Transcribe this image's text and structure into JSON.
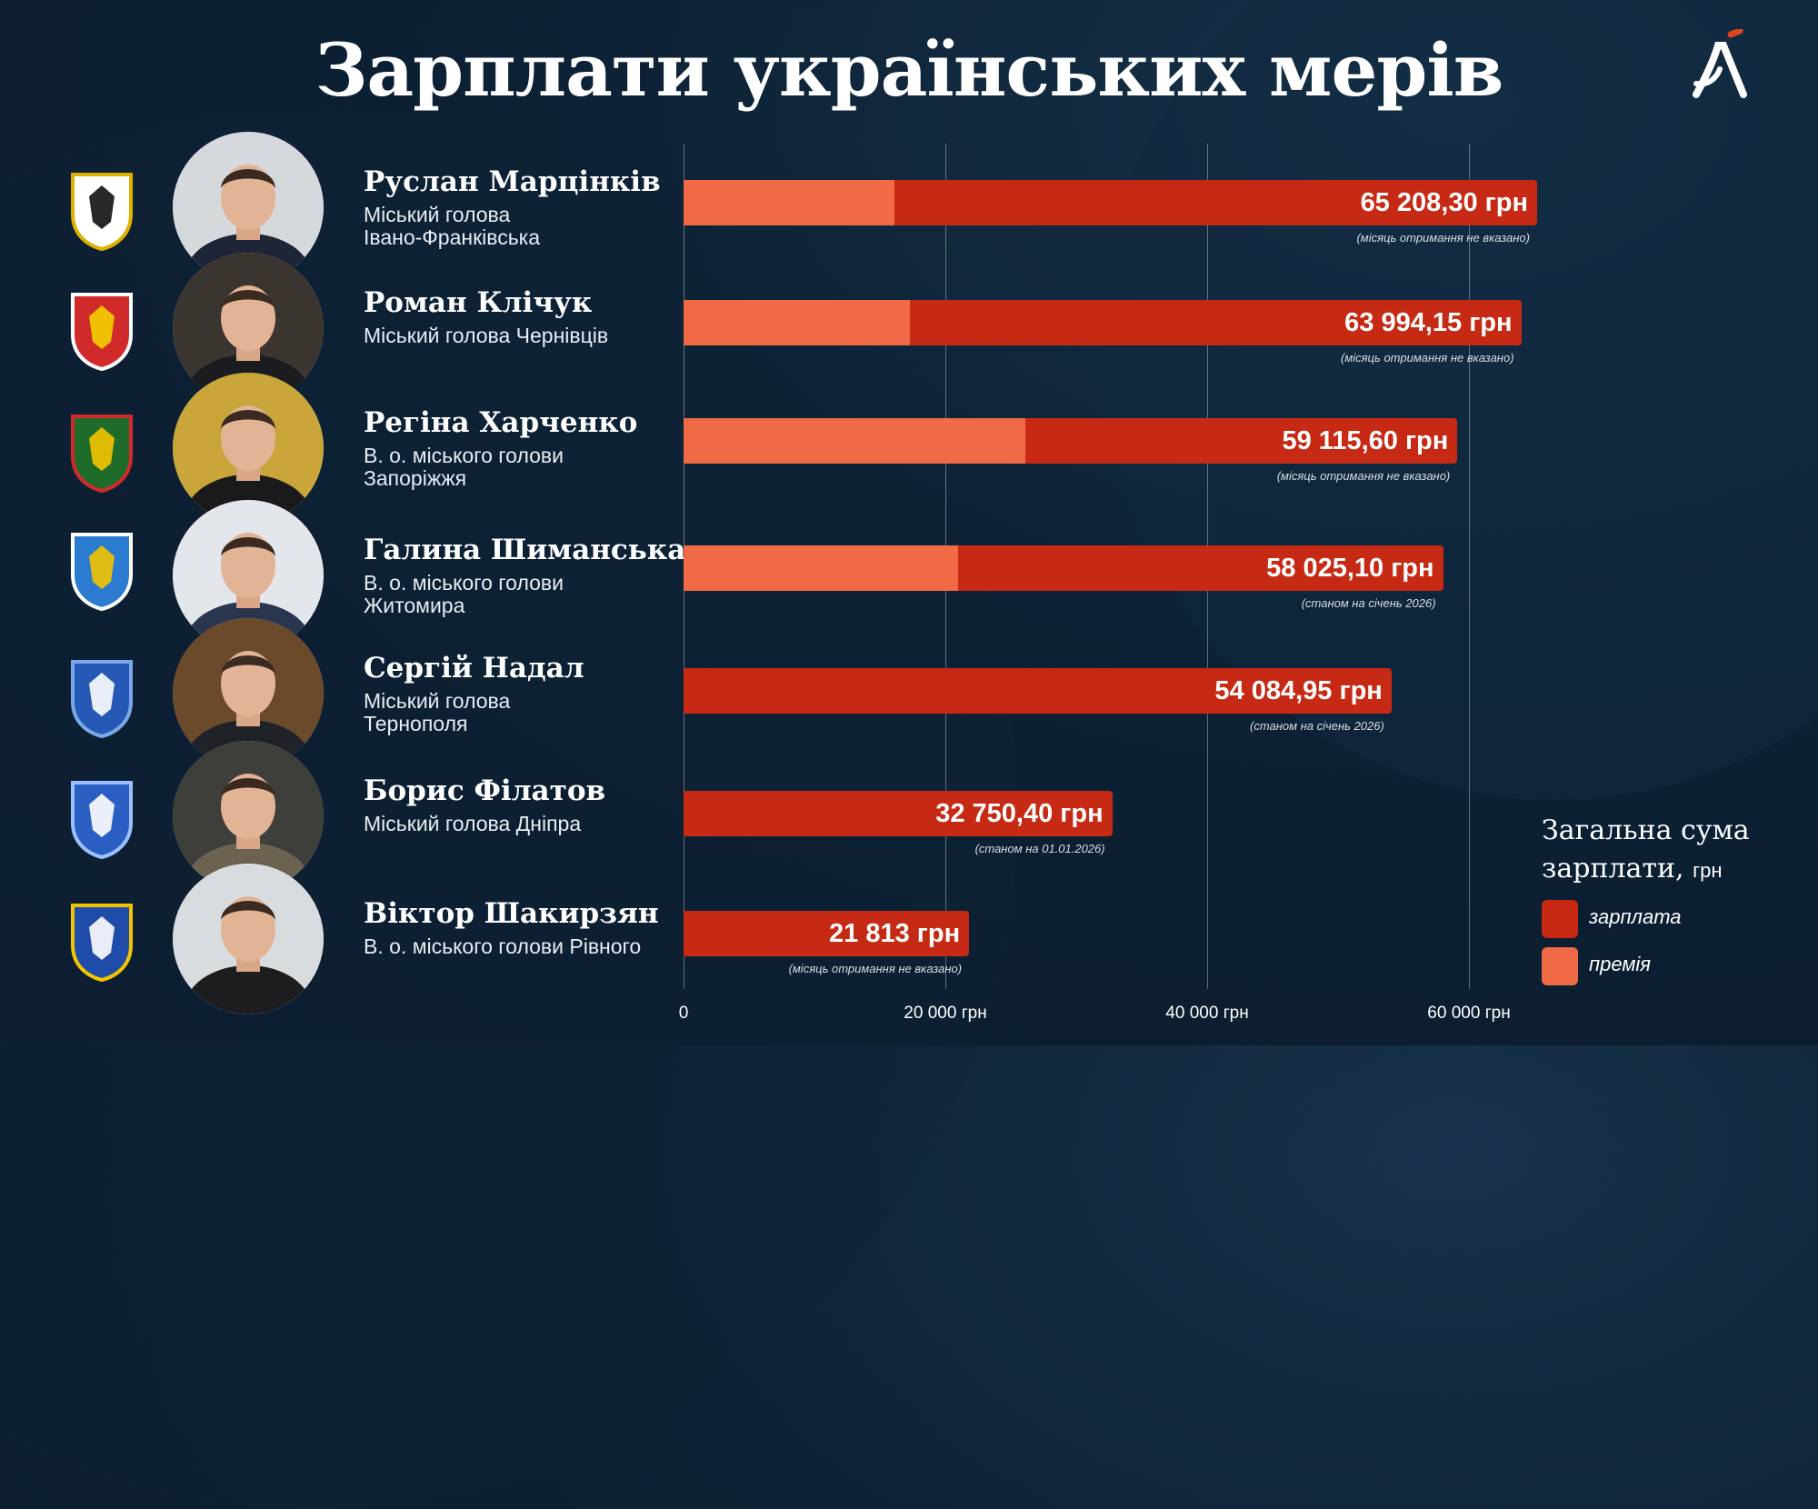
{
  "title": "Зарплати українських мерів",
  "colors": {
    "salary": "#c62a14",
    "bonus": "#ef6a45",
    "background": "#0d2236"
  },
  "icons": [
    "lambda-logo-icon",
    "city-crest-icon",
    "portrait-photo"
  ],
  "people": [
    {
      "name": "Руслан Марцінків",
      "title_lines": [
        "Міський голова",
        "Івано-Франківська"
      ]
    },
    {
      "name": "Роман Клічук",
      "title_lines": [
        "Міський голова Чернівців"
      ]
    },
    {
      "name": "Регіна Харченко",
      "title_lines": [
        "В. о. міського голови",
        "Запоріжжя"
      ]
    },
    {
      "name": "Галина Шиманська",
      "title_lines": [
        "В. о. міського голови",
        "Житомира"
      ]
    },
    {
      "name": "Сергій Надал",
      "title_lines": [
        "Міський голова",
        "Тернополя"
      ]
    },
    {
      "name": "Борис Філатов",
      "title_lines": [
        "Міський голова Дніпра"
      ]
    },
    {
      "name": "Віктор Шакирзян",
      "title_lines": [
        "В. о. міського голови Рівного"
      ]
    }
  ],
  "chart_data": {
    "type": "bar",
    "orientation": "horizontal",
    "stacked": true,
    "title": "Зарплати українських мерів",
    "categories": [
      "Руслан Марцінків",
      "Роман Клічук",
      "Регіна Харченко",
      "Галина Шиманська",
      "Сергій Надал",
      "Борис Філатов",
      "Віктор Шакирзян"
    ],
    "totals": [
      65208.3,
      63994.15,
      59115.6,
      58025.1,
      54084.95,
      32750.4,
      21813
    ],
    "total_labels": [
      "65 208,30 грн",
      "63 994,15 грн",
      "59 115,60 грн",
      "58 025,10 грн",
      "54 084,95 грн",
      "32 750,40 грн",
      "21 813 грн"
    ],
    "bonus_values": [
      16100,
      17300,
      26100,
      21000,
      0,
      0,
      0
    ],
    "notes": [
      "(місяць отримання не вказано)",
      "(місяць отримання не вказано)",
      "(місяць отримання не вказано)",
      "(станом на січень 2026)",
      "(станом на січень 2026)",
      "(станом на 01.01.2026)",
      "(місяць отримання не вказано)"
    ],
    "xlim": [
      0,
      65000
    ],
    "xticks": [
      0,
      20000,
      40000,
      60000
    ],
    "xtick_labels": [
      "0",
      "20 000 грн",
      "40 000 грн",
      "60 000 грн"
    ],
    "grid": true,
    "legend_position": "bottom-right",
    "legend": {
      "title": "Загальна сума зарплати,",
      "unit": "грн",
      "items": [
        {
          "key": "salary",
          "label": "зарплата"
        },
        {
          "key": "bonus",
          "label": "премія"
        }
      ]
    }
  }
}
